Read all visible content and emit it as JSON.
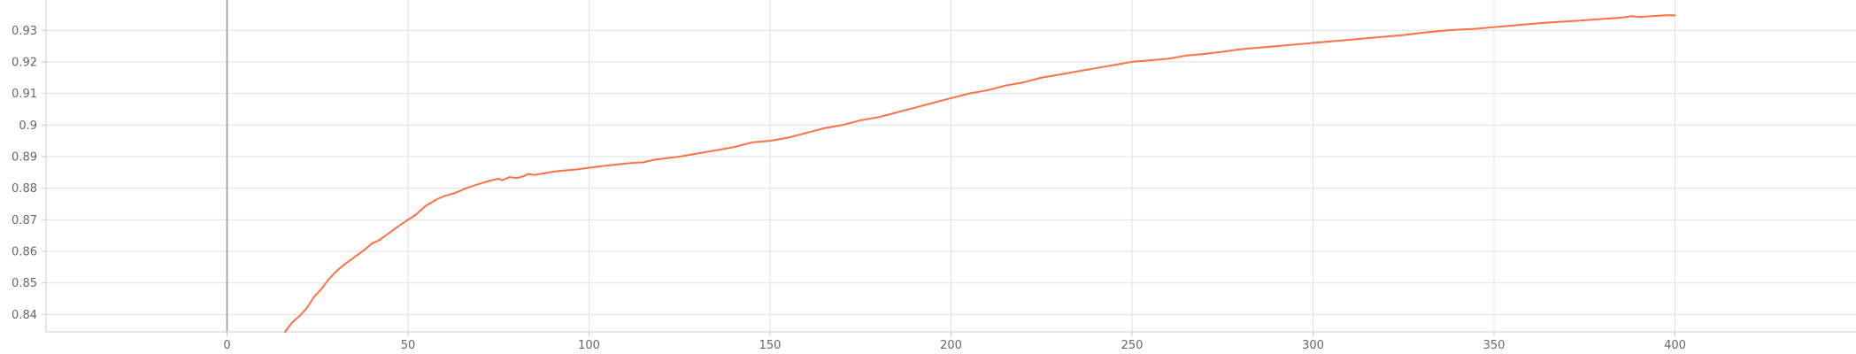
{
  "chart_data": {
    "type": "line",
    "title": "",
    "xlabel": "",
    "ylabel": "",
    "xlim": [
      -50,
      450
    ],
    "ylim": [
      0.8345,
      0.9396
    ],
    "grid": true,
    "legend": "none",
    "x_ticks": [
      0,
      50,
      100,
      150,
      200,
      250,
      300,
      350,
      400
    ],
    "x_tick_labels": [
      "0",
      "50",
      "100",
      "150",
      "200",
      "250",
      "300",
      "350",
      "400"
    ],
    "y_ticks": [
      0.84,
      0.85,
      0.86,
      0.87,
      0.88,
      0.89,
      0.9,
      0.91,
      0.92,
      0.93
    ],
    "y_tick_labels": [
      "0.84",
      "0.85",
      "0.86",
      "0.87",
      "0.88",
      "0.89",
      "0.9",
      "0.91",
      "0.92",
      "0.93"
    ],
    "series": [
      {
        "color": "#ff7043",
        "x": [
          16,
          17,
          18,
          20,
          22,
          24,
          26,
          28,
          30,
          32,
          35,
          38,
          40,
          42,
          45,
          48,
          50,
          52,
          55,
          58,
          60,
          63,
          66,
          70,
          73,
          75,
          76,
          78,
          80,
          82,
          83,
          85,
          88,
          90,
          92,
          95,
          97,
          100,
          105,
          110,
          112,
          115,
          118,
          120,
          125,
          130,
          135,
          140,
          145,
          150,
          155,
          160,
          165,
          170,
          175,
          180,
          185,
          190,
          195,
          200,
          205,
          210,
          215,
          220,
          225,
          230,
          235,
          240,
          245,
          250,
          255,
          260,
          265,
          270,
          275,
          280,
          285,
          290,
          295,
          300,
          305,
          310,
          315,
          320,
          325,
          330,
          335,
          340,
          345,
          350,
          355,
          360,
          365,
          370,
          375,
          380,
          385,
          388,
          390,
          395,
          398,
          400
        ],
        "y": [
          0.8345,
          0.836,
          0.8375,
          0.8395,
          0.842,
          0.8455,
          0.848,
          0.851,
          0.8535,
          0.8555,
          0.858,
          0.8605,
          0.8625,
          0.8635,
          0.866,
          0.8685,
          0.87,
          0.8715,
          0.8745,
          0.8765,
          0.8775,
          0.8785,
          0.88,
          0.8815,
          0.8825,
          0.883,
          0.8825,
          0.8835,
          0.8832,
          0.8838,
          0.8845,
          0.8842,
          0.8848,
          0.8852,
          0.8855,
          0.8858,
          0.886,
          0.8865,
          0.8872,
          0.8878,
          0.888,
          0.8882,
          0.889,
          0.8893,
          0.89,
          0.891,
          0.892,
          0.893,
          0.8945,
          0.895,
          0.896,
          0.8975,
          0.899,
          0.9,
          0.9015,
          0.9025,
          0.904,
          0.9055,
          0.907,
          0.9085,
          0.91,
          0.911,
          0.9125,
          0.9135,
          0.915,
          0.916,
          0.917,
          0.918,
          0.919,
          0.92,
          0.9205,
          0.921,
          0.922,
          0.9225,
          0.9232,
          0.924,
          0.9245,
          0.925,
          0.9255,
          0.926,
          0.9265,
          0.927,
          0.9275,
          0.928,
          0.9285,
          0.9292,
          0.9298,
          0.9302,
          0.9305,
          0.931,
          0.9315,
          0.932,
          0.9325,
          0.9328,
          0.9332,
          0.9336,
          0.934,
          0.9345,
          0.9342,
          0.9346,
          0.9348,
          0.9347
        ]
      }
    ]
  }
}
